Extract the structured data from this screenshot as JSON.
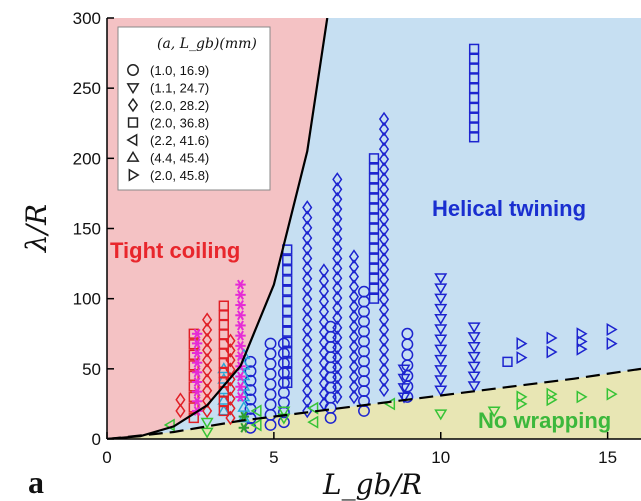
{
  "chart_data": {
    "type": "scatter",
    "xlabel": "L_gb/R",
    "ylabel": "λ/R",
    "xlim": [
      0,
      16
    ],
    "ylim": [
      0,
      300
    ],
    "x_ticks": [
      "0",
      "5",
      "10",
      "15"
    ],
    "y_ticks": [
      "0",
      "50",
      "100",
      "150",
      "200",
      "250",
      "300"
    ],
    "panel_label": "a",
    "legend": {
      "title": "(a, L_gb)(mm)",
      "placement": "top-left",
      "entries": [
        {
          "marker": "circle",
          "label": "(1.0, 16.9)"
        },
        {
          "marker": "triangle-down",
          "label": "(1.1, 24.7)"
        },
        {
          "marker": "diamond",
          "label": "(2.0, 28.2)"
        },
        {
          "marker": "square",
          "label": "(2.0, 36.8)"
        },
        {
          "marker": "triangle-left",
          "label": "(2.2, 41.6)"
        },
        {
          "marker": "triangle-up",
          "label": "(4.4, 45.4)"
        },
        {
          "marker": "triangle-right",
          "label": "(2.0, 45.8)"
        }
      ]
    },
    "regions": [
      {
        "label": "Tight coiling",
        "color": "#f4c2c4",
        "text_color": "#e8262c"
      },
      {
        "label": "Helical twining",
        "color": "#c6dff2",
        "text_color": "#1a2fd0"
      },
      {
        "label": "No wrapping",
        "color": "#e8e6b4",
        "text_color": "#3cb83c"
      }
    ],
    "boundaries": {
      "coiling_curve": {
        "x": [
          0,
          1,
          2,
          3,
          4,
          5,
          6,
          6.6
        ],
        "y": [
          0,
          2,
          9,
          24,
          52,
          110,
          205,
          300
        ]
      },
      "wrapping_line": {
        "x": [
          0,
          2,
          4,
          6,
          8,
          10,
          12,
          14,
          16
        ],
        "y": [
          0,
          5,
          13,
          19,
          25,
          31,
          37,
          43,
          50
        ]
      }
    },
    "series": [
      {
        "marker": "circle",
        "color": "#1d24cf",
        "columns": [
          {
            "x": 4.3,
            "y": [
              8,
              55
            ]
          },
          {
            "x": 4.9,
            "y": [
              10,
              68
            ]
          },
          {
            "x": 5.3,
            "y": [
              12,
              68
            ]
          },
          {
            "x": 6.7,
            "y": [
              15,
              80
            ]
          },
          {
            "x": 7.7,
            "y": [
              20,
              105
            ]
          },
          {
            "x": 9.0,
            "y": [
              30,
              75
            ]
          }
        ]
      },
      {
        "marker": "triangle-down",
        "color": "#1d24cf",
        "columns": [
          {
            "x": 8.9,
            "y": [
              30,
              50
            ]
          },
          {
            "x": 10.0,
            "y": [
              35,
              115
            ]
          },
          {
            "x": 11.0,
            "y": [
              38,
              80
            ]
          }
        ]
      },
      {
        "marker": "diamond",
        "color": "#1d24cf",
        "columns": [
          {
            "x": 6.0,
            "y": [
              20,
              165
            ]
          },
          {
            "x": 6.5,
            "y": [
              25,
              120
            ]
          },
          {
            "x": 6.9,
            "y": [
              30,
              185
            ]
          },
          {
            "x": 7.4,
            "y": [
              30,
              130
            ]
          },
          {
            "x": 8.3,
            "y": [
              35,
              228
            ]
          }
        ]
      },
      {
        "marker": "square",
        "color": "#1d24cf",
        "columns": [
          {
            "x": 5.4,
            "y": [
              40,
              135
            ]
          },
          {
            "x": 8.0,
            "y": [
              100,
              200
            ]
          },
          {
            "x": 11.0,
            "y": [
              215,
              278
            ]
          },
          {
            "x": 12.0,
            "y": [
              55,
              55
            ]
          }
        ]
      },
      {
        "marker": "triangle-right",
        "color": "#1d24cf",
        "columns": [
          {
            "x": 12.4,
            "y": [
              58,
              68
            ]
          },
          {
            "x": 13.3,
            "y": [
              62,
              72
            ]
          },
          {
            "x": 14.2,
            "y": [
              64,
              75
            ]
          },
          {
            "x": 15.1,
            "y": [
              68,
              78
            ]
          }
        ]
      },
      {
        "marker": "triangle-up",
        "color": "#29a9d8",
        "columns": [
          {
            "x": 3.5,
            "y": [
              20,
              50
            ]
          },
          {
            "x": 4.1,
            "y": [
              15,
              60
            ]
          }
        ]
      },
      {
        "marker": "square",
        "color": "#e01f26",
        "columns": [
          {
            "x": 2.6,
            "y": [
              15,
              75
            ]
          },
          {
            "x": 3.5,
            "y": [
              20,
              95
            ]
          }
        ]
      },
      {
        "marker": "diamond",
        "color": "#e01f26",
        "columns": [
          {
            "x": 2.2,
            "y": [
              20,
              28
            ]
          },
          {
            "x": 3.0,
            "y": [
              20,
              85
            ]
          },
          {
            "x": 3.7,
            "y": [
              15,
              70
            ]
          }
        ]
      },
      {
        "marker": "asterisk",
        "color": "#e52bd6",
        "columns": [
          {
            "x": 2.7,
            "y": [
              20,
              75
            ]
          },
          {
            "x": 4.0,
            "y": [
              30,
              110
            ]
          }
        ]
      },
      {
        "marker": "triangle-left",
        "color": "#36c336",
        "columns": [
          {
            "x": 1.9,
            "y": [
              10,
              10
            ]
          },
          {
            "x": 4.5,
            "y": [
              10,
              20
            ]
          },
          {
            "x": 6.2,
            "y": [
              12,
              22
            ]
          },
          {
            "x": 8.5,
            "y": [
              25,
              25
            ]
          }
        ]
      },
      {
        "marker": "triangle-down",
        "color": "#36c336",
        "columns": [
          {
            "x": 3.0,
            "y": [
              5,
              12
            ]
          },
          {
            "x": 5.3,
            "y": [
              15,
              20
            ]
          },
          {
            "x": 10.0,
            "y": [
              18,
              18
            ]
          },
          {
            "x": 11.6,
            "y": [
              20,
              20
            ]
          }
        ]
      },
      {
        "marker": "triangle-right",
        "color": "#36c336",
        "columns": [
          {
            "x": 12.4,
            "y": [
              25,
              30
            ]
          },
          {
            "x": 13.3,
            "y": [
              28,
              32
            ]
          },
          {
            "x": 14.2,
            "y": [
              30,
              32
            ]
          },
          {
            "x": 15.1,
            "y": [
              32,
              35
            ]
          }
        ]
      },
      {
        "marker": "asterisk",
        "color": "#2e9f2e",
        "columns": [
          {
            "x": 4.1,
            "y": [
              8,
              16
            ]
          }
        ]
      }
    ]
  }
}
